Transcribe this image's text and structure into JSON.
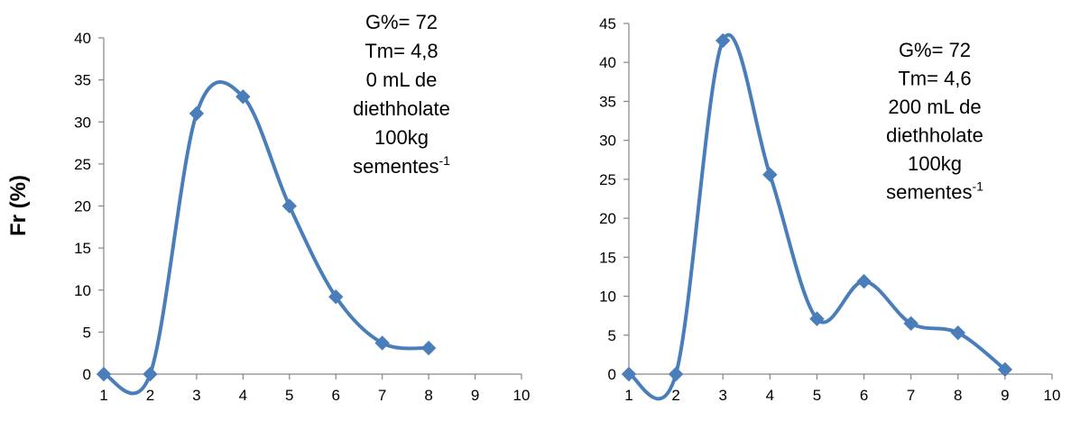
{
  "colors": {
    "series": "#4a7ebb",
    "axis": "#868686",
    "text": "#000000"
  },
  "chart_data": [
    {
      "type": "line",
      "smooth": true,
      "marker": "diamond",
      "ylabel": "Fr (%)",
      "xlabel": "",
      "xlim": [
        1,
        10
      ],
      "ylim": [
        0,
        40
      ],
      "xticks": [
        1,
        2,
        3,
        4,
        5,
        6,
        7,
        8,
        9,
        10
      ],
      "yticks": [
        0,
        5,
        10,
        15,
        20,
        25,
        30,
        35,
        40
      ],
      "grid": false,
      "legend": "none",
      "annotation": [
        "G%= 72",
        "Tm= 4,8",
        "0 mL de",
        "diethholate",
        "100kg",
        "sementes"
      ],
      "annotation_superscript": "-1",
      "series": [
        {
          "x": [
            1,
            2,
            3,
            4,
            5,
            6,
            7,
            8
          ],
          "y": [
            0,
            0,
            31,
            33,
            20,
            9.2,
            3.7,
            3.1
          ]
        }
      ]
    },
    {
      "type": "line",
      "smooth": true,
      "marker": "diamond",
      "ylabel": "",
      "xlabel": "",
      "xlim": [
        1,
        10
      ],
      "ylim": [
        0,
        45
      ],
      "xticks": [
        1,
        2,
        3,
        4,
        5,
        6,
        7,
        8,
        9,
        10
      ],
      "yticks": [
        0,
        5,
        10,
        15,
        20,
        25,
        30,
        35,
        40,
        45
      ],
      "grid": false,
      "legend": "none",
      "annotation": [
        "G%= 72",
        "Tm= 4,6",
        "200 mL de",
        "diethholate",
        "100kg",
        "sementes"
      ],
      "annotation_superscript": "-1",
      "series": [
        {
          "x": [
            1,
            2,
            3,
            4,
            5,
            6,
            7,
            8,
            9
          ],
          "y": [
            0,
            0,
            42.8,
            25.6,
            7.1,
            11.9,
            6.5,
            5.3,
            0.6
          ]
        }
      ]
    }
  ]
}
